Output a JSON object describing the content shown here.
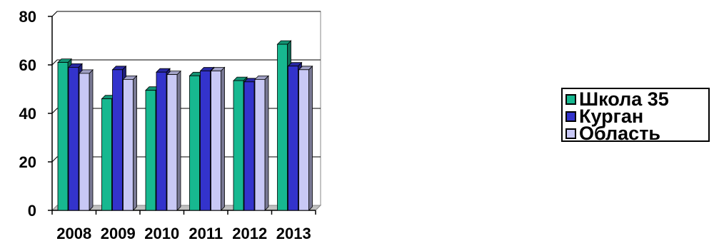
{
  "chart_data": {
    "type": "bar",
    "title": "",
    "xlabel": "",
    "ylabel": "",
    "categories": [
      "2008",
      "2009",
      "2010",
      "2011",
      "2012",
      "2013"
    ],
    "series": [
      {
        "name": "Школа 35",
        "color": "#17b890",
        "values": [
          61,
          46,
          49.5,
          55.5,
          53.5,
          68.5
        ]
      },
      {
        "name": "Курган",
        "color": "#3333cc",
        "values": [
          59,
          58,
          57,
          57.5,
          53,
          59.5
        ]
      },
      {
        "name": "Область",
        "color": "#c8c8f5",
        "values": [
          56.5,
          54,
          56,
          57.5,
          54,
          58
        ]
      }
    ],
    "ylim": [
      0,
      80
    ],
    "yticks": [
      "0",
      "20",
      "40",
      "60",
      "80"
    ],
    "grid": true,
    "legend": "right"
  }
}
